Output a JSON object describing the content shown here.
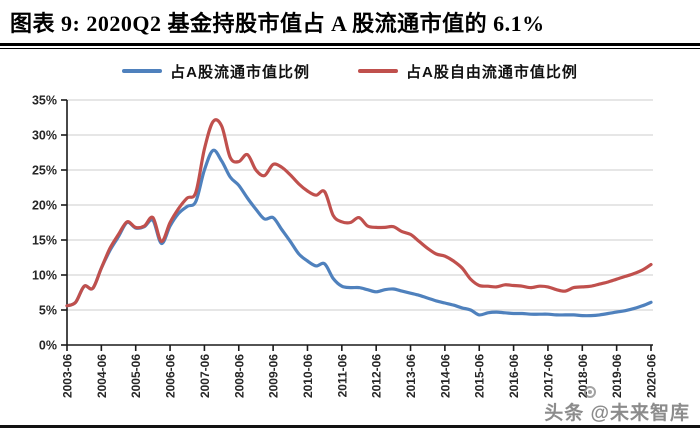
{
  "title": {
    "text": "图表 9: 2020Q2 基金持股市值占 A 股流通市值的 6.1%"
  },
  "watermark": {
    "text": "头条 @未来智库"
  },
  "legend": {
    "items": [
      {
        "label": "占A股流通市值比例",
        "color": "#4F81BD"
      },
      {
        "label": "占A股自由流通市值比例",
        "color": "#C0504D"
      }
    ]
  },
  "colors": {
    "blue_series": "#4F81BD",
    "red_series": "#C0504D",
    "gridline": "#D6D6D6",
    "axis": "#1a1a1a",
    "tick_label": "#262626"
  },
  "chart_data": {
    "type": "line",
    "title": "图表 9: 2020Q2 基金持股市值占 A 股流通市值的 6.1%",
    "xlabel": "",
    "ylabel": "",
    "ylim": [
      0,
      35
    ],
    "ytick_step": 5,
    "grid": true,
    "legend_position": "top",
    "ytick_labels": [
      "0%",
      "5%",
      "10%",
      "15%",
      "20%",
      "25%",
      "30%",
      "35%"
    ],
    "xtick_every": 4,
    "xtick_labels": [
      "2003-06",
      "2004-06",
      "2005-06",
      "2006-06",
      "2007-06",
      "2008-06",
      "2009-06",
      "2010-06",
      "2011-06",
      "2012-06",
      "2013-06",
      "2014-06",
      "2015-06",
      "2016-06",
      "2017-06",
      "2018-06",
      "2019-06",
      "2020-06"
    ],
    "x": [
      "2003-06",
      "2003-09",
      "2003-12",
      "2004-03",
      "2004-06",
      "2004-09",
      "2004-12",
      "2005-03",
      "2005-06",
      "2005-09",
      "2005-12",
      "2006-03",
      "2006-06",
      "2006-09",
      "2006-12",
      "2007-03",
      "2007-06",
      "2007-09",
      "2007-12",
      "2008-03",
      "2008-06",
      "2008-09",
      "2008-12",
      "2009-03",
      "2009-06",
      "2009-09",
      "2009-12",
      "2010-03",
      "2010-06",
      "2010-09",
      "2010-12",
      "2011-03",
      "2011-06",
      "2011-09",
      "2011-12",
      "2012-03",
      "2012-06",
      "2012-09",
      "2012-12",
      "2013-03",
      "2013-06",
      "2013-09",
      "2013-12",
      "2014-03",
      "2014-06",
      "2014-09",
      "2014-12",
      "2015-03",
      "2015-06",
      "2015-09",
      "2015-12",
      "2016-03",
      "2016-06",
      "2016-09",
      "2016-12",
      "2017-03",
      "2017-06",
      "2017-09",
      "2017-12",
      "2018-03",
      "2018-06",
      "2018-09",
      "2018-12",
      "2019-03",
      "2019-06",
      "2019-09",
      "2019-12",
      "2020-03",
      "2020-06"
    ],
    "series": [
      {
        "name": "占A股流通市值比例",
        "color": "#4F81BD",
        "values": [
          5.6,
          6.1,
          8.4,
          8.1,
          11.0,
          13.5,
          15.5,
          17.5,
          16.7,
          16.9,
          17.8,
          14.5,
          17.0,
          18.8,
          19.8,
          20.5,
          25.0,
          27.8,
          26.3,
          24.0,
          22.8,
          21.0,
          19.4,
          18.0,
          18.2,
          16.5,
          14.8,
          13.0,
          12.0,
          11.3,
          11.6,
          9.5,
          8.4,
          8.2,
          8.2,
          7.9,
          7.6,
          7.9,
          8.0,
          7.7,
          7.4,
          7.1,
          6.7,
          6.3,
          6.0,
          5.7,
          5.3,
          5.0,
          4.3,
          4.6,
          4.7,
          4.6,
          4.5,
          4.5,
          4.4,
          4.4,
          4.4,
          4.3,
          4.3,
          4.3,
          4.2,
          4.2,
          4.3,
          4.5,
          4.7,
          4.9,
          5.2,
          5.6,
          6.1
        ]
      },
      {
        "name": "占A股自由流通市值比例",
        "color": "#C0504D",
        "values": [
          5.6,
          6.1,
          8.4,
          8.1,
          11.0,
          13.8,
          15.8,
          17.6,
          16.8,
          17.0,
          18.2,
          14.8,
          17.5,
          19.5,
          21.0,
          21.8,
          28.0,
          31.9,
          31.3,
          26.8,
          26.2,
          27.2,
          25.0,
          24.2,
          25.8,
          25.4,
          24.3,
          23.0,
          22.0,
          21.4,
          21.9,
          18.5,
          17.6,
          17.5,
          18.2,
          17.0,
          16.8,
          16.8,
          16.9,
          16.2,
          15.8,
          14.8,
          13.8,
          13.0,
          12.7,
          12.0,
          11.0,
          9.4,
          8.5,
          8.4,
          8.3,
          8.6,
          8.5,
          8.4,
          8.2,
          8.4,
          8.3,
          7.9,
          7.7,
          8.2,
          8.3,
          8.4,
          8.7,
          9.0,
          9.4,
          9.8,
          10.2,
          10.7,
          11.5
        ]
      }
    ]
  }
}
